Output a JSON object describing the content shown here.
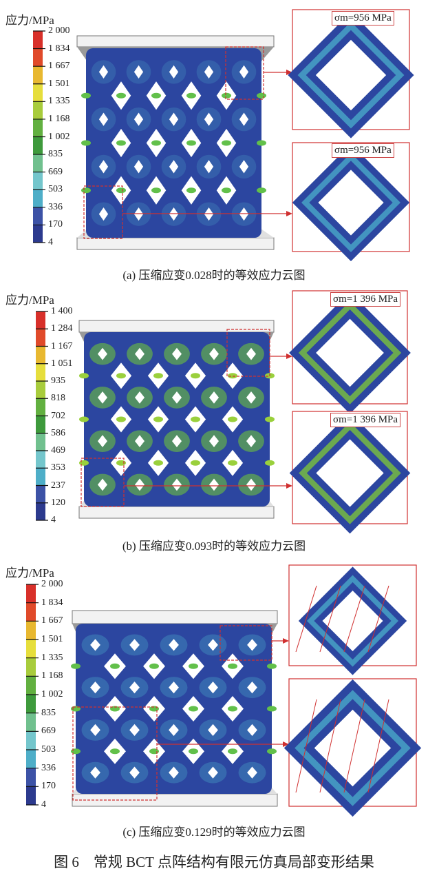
{
  "legend_colors": [
    "#d8302a",
    "#e04a2a",
    "#e8b830",
    "#e6de3c",
    "#a8cc3c",
    "#62b040",
    "#3e9a3c",
    "#70c08e",
    "#74c6cc",
    "#4eaec8",
    "#3c52a6",
    "#2c3a8e"
  ],
  "accent_color": "#d03030",
  "panels": [
    {
      "legend_title": "应力/MPa",
      "ticks": [
        "2 000",
        "1 834",
        "1 667",
        "1 501",
        "1 335",
        "1 168",
        "1 002",
        "835",
        "669",
        "503",
        "336",
        "170",
        "4"
      ],
      "insets": [
        {
          "label": "σm=956 MPa"
        },
        {
          "label": "σm=956 MPa"
        }
      ],
      "caption": "(a) 压缩应变0.028时的等效应力云图"
    },
    {
      "legend_title": "应力/MPa",
      "ticks": [
        "1 400",
        "1 284",
        "1 167",
        "1 051",
        "935",
        "818",
        "702",
        "586",
        "469",
        "353",
        "237",
        "120",
        "4"
      ],
      "insets": [
        {
          "label": "σm=1 396 MPa"
        },
        {
          "label": "σm=1 396 MPa"
        }
      ],
      "caption": "(b) 压缩应变0.093时的等效应力云图"
    },
    {
      "legend_title": "应力/MPa",
      "ticks": [
        "2 000",
        "1 834",
        "1 667",
        "1 501",
        "1 335",
        "1 168",
        "1 002",
        "835",
        "669",
        "503",
        "336",
        "170",
        "4"
      ],
      "insets": [],
      "caption": "(c) 压缩应变0.129时的等效应力云图"
    }
  ],
  "figure_caption": "图 6　常规 BCT 点阵结构有限元仿真局部变形结果"
}
